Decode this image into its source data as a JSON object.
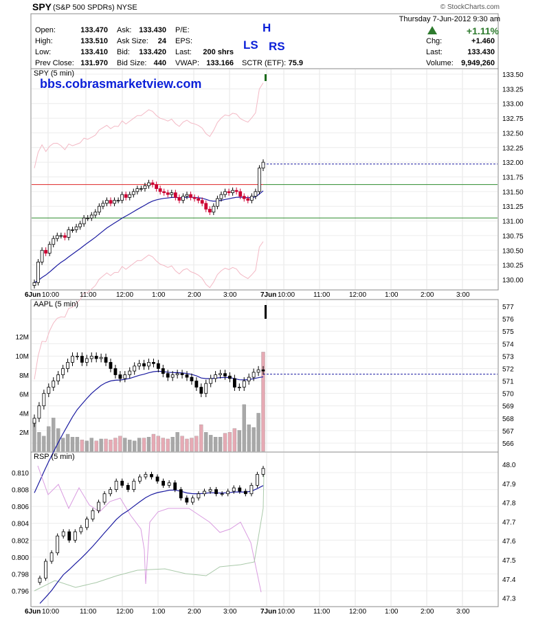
{
  "header": {
    "symbol": "SPY",
    "description": "(S&P 500 SPDRs)",
    "exchange": "NYSE",
    "source": "© StockCharts.com",
    "datetime": "Thursday  7-Jun-2012  9:30 am",
    "change_pct": "+1.11%",
    "fields": [
      {
        "label": "Open:",
        "value": "133.470"
      },
      {
        "label": "High:",
        "value": "133.510"
      },
      {
        "label": "Low:",
        "value": "133.410"
      },
      {
        "label": "Prev Close:",
        "value": "131.970"
      },
      {
        "label": "Ask:",
        "value": "133.430"
      },
      {
        "label": "Ask Size:",
        "value": "24"
      },
      {
        "label": "Bid:",
        "value": "133.420"
      },
      {
        "label": "Bid Size:",
        "value": "440"
      },
      {
        "label": "P/E:",
        "value": ""
      },
      {
        "label": "EPS:",
        "value": ""
      },
      {
        "label": "Last:",
        "value": "200 shrs"
      },
      {
        "label": "VWAP:",
        "value": "133.166"
      },
      {
        "label": "SCTR (ETF):",
        "value": "75.9"
      },
      {
        "label": "Chg:",
        "value": "+1.460"
      },
      {
        "label": "Last:",
        "value": "133.430"
      },
      {
        "label": "Volume:",
        "value": "9,949,260"
      }
    ],
    "annotations": {
      "h": "H",
      "ls": "LS",
      "rs": "RS"
    },
    "watermark": "bbs.cobrasmarketview.com"
  },
  "x_axis": {
    "labels": [
      "6Jun",
      "10:00",
      "11:00",
      "12:00",
      "1:00",
      "2:00",
      "3:00",
      "7Jun",
      "10:00",
      "11:00",
      "12:00",
      "1:00",
      "2:00",
      "3:00"
    ]
  },
  "colors": {
    "price_up": "#000000",
    "price_down": "#cc0033",
    "ma": "#1a1aa0",
    "bands": "#f3b8c4",
    "resistance": "#dd2222",
    "support": "#2a8a2a",
    "last_price": "#1a1aa0",
    "volume_up": "#a8a8a8",
    "volume_down": "#e6aab4",
    "rsp_purple": "#d99be0",
    "rsp_green": "#a9c9a9"
  },
  "chart_data": [
    {
      "type": "line",
      "title": "SPY (5 min)",
      "x": "time (5-minute bars, 6-Jun-2012 09:30 to 7-Jun-2012 09:30)",
      "ylim": [
        129.9,
        133.55
      ],
      "y_ticks": [
        "133.50",
        "133.25",
        "133.00",
        "132.75",
        "132.50",
        "132.25",
        "132.00",
        "131.75",
        "131.50",
        "131.25",
        "131.00",
        "130.75",
        "130.50",
        "130.25",
        "130.00"
      ],
      "close": [
        129.95,
        130.3,
        130.5,
        130.45,
        130.6,
        130.7,
        130.75,
        130.75,
        130.72,
        130.85,
        130.85,
        130.9,
        130.95,
        131.05,
        131.05,
        131.1,
        131.15,
        131.25,
        131.3,
        131.35,
        131.3,
        131.35,
        131.35,
        131.45,
        131.4,
        131.45,
        131.5,
        131.55,
        131.55,
        131.6,
        131.65,
        131.62,
        131.55,
        131.5,
        131.48,
        131.45,
        131.48,
        131.4,
        131.35,
        131.42,
        131.45,
        131.4,
        131.38,
        131.35,
        131.3,
        131.2,
        131.15,
        131.25,
        131.38,
        131.45,
        131.5,
        131.48,
        131.52,
        131.5,
        131.42,
        131.38,
        131.35,
        131.42,
        131.5,
        131.9,
        132.0
      ],
      "lines": [
        {
          "name": "resistance",
          "value": 131.62
        },
        {
          "name": "support",
          "value": 131.05
        },
        {
          "name": "support 2",
          "value": 131.62
        },
        {
          "name": "last",
          "value": 131.97
        }
      ]
    },
    {
      "type": "bar",
      "title": "AAPL (5 min)",
      "price_ylim": [
        565.5,
        577.6
      ],
      "price_ticks": [
        "577",
        "576",
        "575",
        "574",
        "573",
        "572",
        "571",
        "570",
        "569",
        "568",
        "567",
        "566"
      ],
      "volume_ticks": [
        "12M",
        "10M",
        "8M",
        "6M",
        "4M",
        "2M"
      ],
      "close": [
        568.0,
        569.0,
        570.0,
        570.5,
        571.0,
        571.5,
        572.0,
        572.5,
        573.0,
        573.0,
        572.5,
        572.8,
        573.0,
        572.8,
        572.9,
        572.5,
        572.0,
        571.5,
        571.2,
        571.5,
        571.8,
        572.2,
        572.4,
        572.2,
        572.5,
        572.4,
        572.0,
        571.6,
        571.3,
        571.5,
        571.6,
        571.5,
        571.3,
        571.0,
        570.5,
        570.0,
        570.8,
        571.2,
        571.5,
        571.6,
        571.4,
        571.2,
        570.5,
        570.5,
        571.0,
        571.3,
        571.7,
        571.9,
        571.8
      ],
      "volume_millions": [
        3.2,
        2.0,
        1.6,
        2.6,
        3.5,
        2.4,
        1.4,
        1.8,
        1.5,
        1.5,
        1.2,
        1.1,
        1.4,
        1.1,
        1.3,
        1.3,
        1.2,
        1.4,
        1.6,
        1.4,
        1.2,
        1.1,
        1.4,
        1.4,
        1.5,
        1.8,
        1.6,
        1.4,
        1.3,
        1.5,
        2.0,
        1.6,
        1.3,
        1.4,
        1.6,
        2.8,
        2.0,
        1.7,
        1.5,
        1.5,
        1.9,
        2.0,
        2.4,
        2.2,
        4.9,
        2.8,
        2.5,
        4.0,
        10.4
      ]
    },
    {
      "type": "line",
      "title": "RSP (5 min)",
      "left_ylim": [
        0.7955,
        0.8113
      ],
      "left_ticks": [
        "0.810",
        "0.808",
        "0.806",
        "0.804",
        "0.802",
        "0.800",
        "0.798",
        "0.796"
      ],
      "right_ticks": [
        "48.0",
        "47.9",
        "47.8",
        "47.7",
        "47.6",
        "47.5",
        "47.4",
        "47.3"
      ],
      "ratio": [
        0.7975,
        0.7995,
        0.8005,
        0.8025,
        0.803,
        0.802,
        0.803,
        0.8035,
        0.8045,
        0.8055,
        0.8065,
        0.8075,
        0.808,
        0.809,
        0.8085,
        0.808,
        0.809,
        0.8095,
        0.8098,
        0.8095,
        0.809,
        0.8085,
        0.8088,
        0.808,
        0.807,
        0.8065,
        0.807,
        0.8075,
        0.8078,
        0.808,
        0.8075,
        0.8075,
        0.8078,
        0.8082,
        0.8078,
        0.8075,
        0.8085,
        0.8098,
        0.8105
      ]
    }
  ]
}
